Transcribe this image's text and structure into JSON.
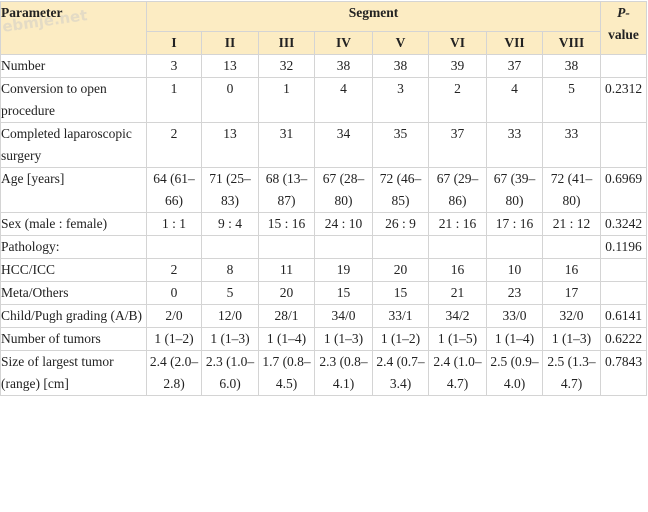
{
  "watermark_text": "ebmje.net",
  "header": {
    "parameter": "Parameter",
    "segment": "Segment",
    "p_value_p": "P-",
    "p_value_rest": "value",
    "segments": [
      "I",
      "II",
      "III",
      "IV",
      "V",
      "VI",
      "VII",
      "VIII"
    ]
  },
  "rows": [
    {
      "label": "Number",
      "values": [
        "3",
        "13",
        "32",
        "38",
        "38",
        "39",
        "37",
        "38"
      ],
      "p": ""
    },
    {
      "label": "Conversion to open procedure",
      "values": [
        "1",
        "0",
        "1",
        "4",
        "3",
        "2",
        "4",
        "5"
      ],
      "p": "0.2312"
    },
    {
      "label": "Completed laparoscopic surgery",
      "values": [
        "2",
        "13",
        "31",
        "34",
        "35",
        "37",
        "33",
        "33"
      ],
      "p": ""
    },
    {
      "label": "Age [years]",
      "values": [
        "64 (61–66)",
        "71 (25–83)",
        "68 (13–87)",
        "67 (28–80)",
        "72 (46–85)",
        "67 (29–86)",
        "67 (39–80)",
        "72 (41–80)"
      ],
      "p": "0.6969"
    },
    {
      "label": "Sex (male : female)",
      "values": [
        "1 : 1",
        "9 : 4",
        "15 : 16",
        "24 : 10",
        "26 : 9",
        "21 : 16",
        "17 : 16",
        "21 : 12"
      ],
      "p": "0.3242"
    },
    {
      "label": "Pathology:",
      "values": [
        "",
        "",
        "",
        "",
        "",
        "",
        "",
        ""
      ],
      "p": "0.1196"
    },
    {
      "label": "HCC/ICC",
      "values": [
        "2",
        "8",
        "11",
        "19",
        "20",
        "16",
        "10",
        "16"
      ],
      "p": ""
    },
    {
      "label": "Meta/Others",
      "values": [
        "0",
        "5",
        "20",
        "15",
        "15",
        "21",
        "23",
        "17"
      ],
      "p": ""
    },
    {
      "label": "Child/Pugh grading (A/B)",
      "values": [
        "2/0",
        "12/0",
        "28/1",
        "34/0",
        "33/1",
        "34/2",
        "33/0",
        "32/0"
      ],
      "p": "0.6141"
    },
    {
      "label": "Number of tumors",
      "values": [
        "1 (1–2)",
        "1 (1–3)",
        "1 (1–4)",
        "1 (1–3)",
        "1 (1–2)",
        "1 (1–5)",
        "1 (1–4)",
        "1 (1–3)"
      ],
      "p": "0.6222"
    },
    {
      "label": "Size of largest tumor (range) [cm]",
      "values": [
        "2.4 (2.0–2.8)",
        "2.3 (1.0–6.0)",
        "1.7 (0.8–4.5)",
        "2.3 (0.8–4.1)",
        "2.4 (0.7–3.4)",
        "2.4 (1.0–4.7)",
        "2.5 (0.9–4.0)",
        "2.5 (1.3–4.7)"
      ],
      "p": "0.7843"
    }
  ]
}
